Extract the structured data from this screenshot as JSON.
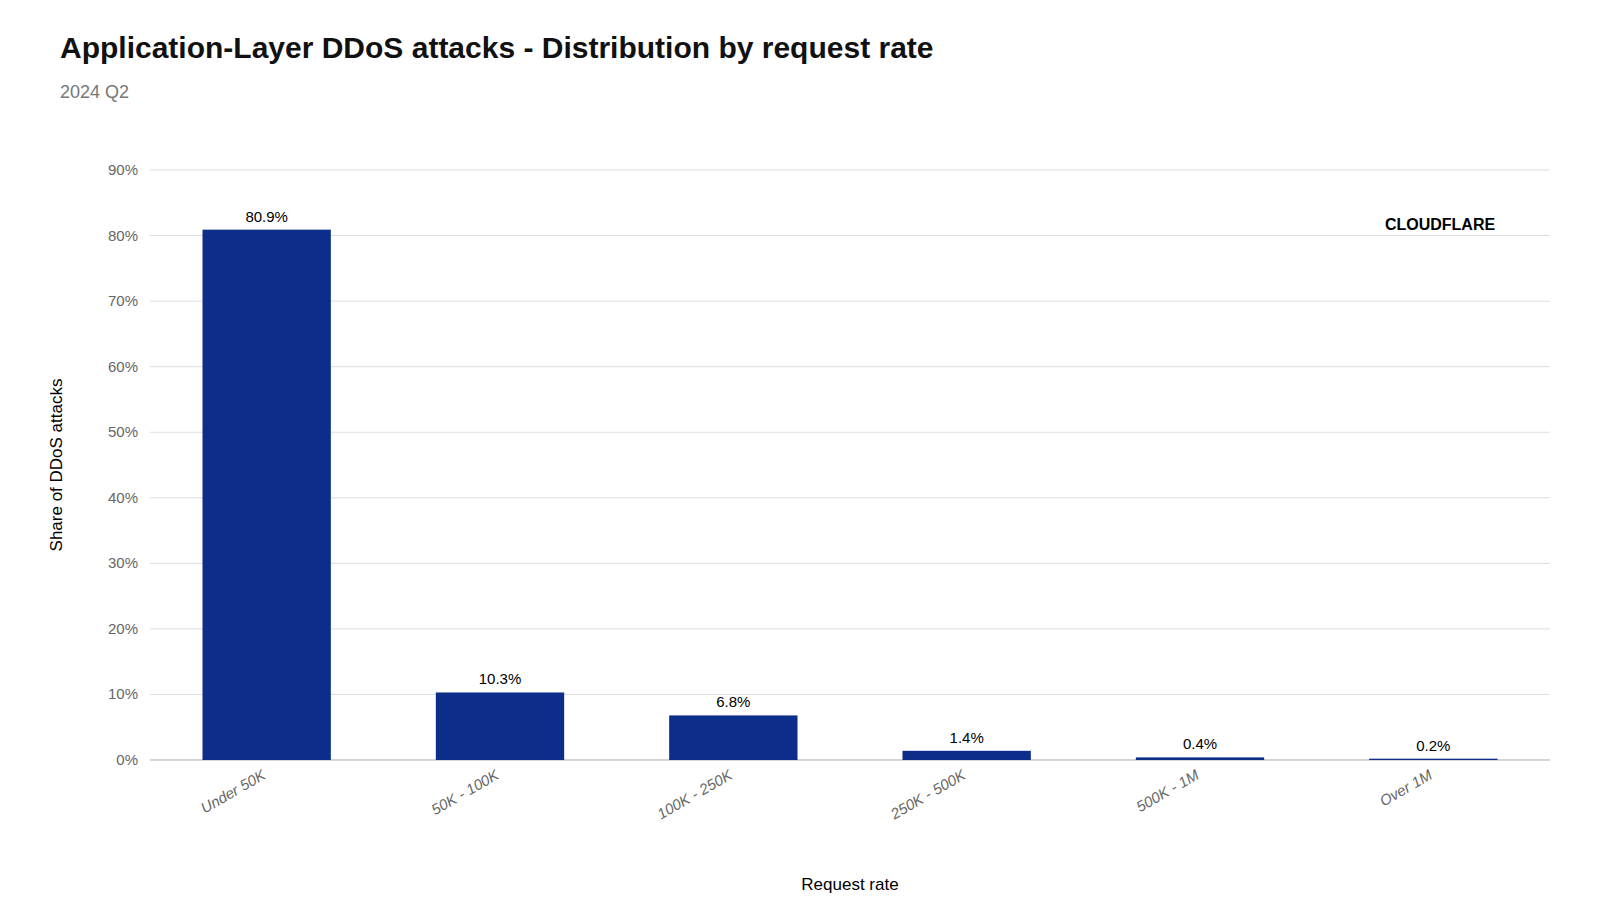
{
  "chart_data": {
    "type": "bar",
    "title": "Application-Layer DDoS attacks - Distribution by request rate",
    "subtitle": "2024 Q2",
    "xlabel": "Request rate",
    "ylabel": "Share of DDoS attacks",
    "categories": [
      "Under 50K",
      "50K - 100K",
      "100K - 250K",
      "250K - 500K",
      "500K - 1M",
      "Over 1M"
    ],
    "values": [
      80.9,
      10.3,
      6.8,
      1.4,
      0.4,
      0.2
    ],
    "value_labels": [
      "80.9%",
      "10.3%",
      "6.8%",
      "1.4%",
      "0.4%",
      "0.2%"
    ],
    "data_labels": true,
    "color": "#0d2d8a",
    "ylim": [
      0,
      90
    ],
    "yticks": [
      {
        "value": 0,
        "label": "0%"
      },
      {
        "value": 10,
        "label": "10%"
      },
      {
        "value": 20,
        "label": "20%"
      },
      {
        "value": 30,
        "label": "30%"
      },
      {
        "value": 40,
        "label": "40%"
      },
      {
        "value": 50,
        "label": "50%"
      },
      {
        "value": 60,
        "label": "60%"
      },
      {
        "value": 70,
        "label": "70%"
      },
      {
        "value": 80,
        "label": "80%"
      },
      {
        "value": 90,
        "label": "90%"
      }
    ],
    "grid": true,
    "annotations": [
      {
        "text": "CLOUDFLARE"
      }
    ]
  }
}
